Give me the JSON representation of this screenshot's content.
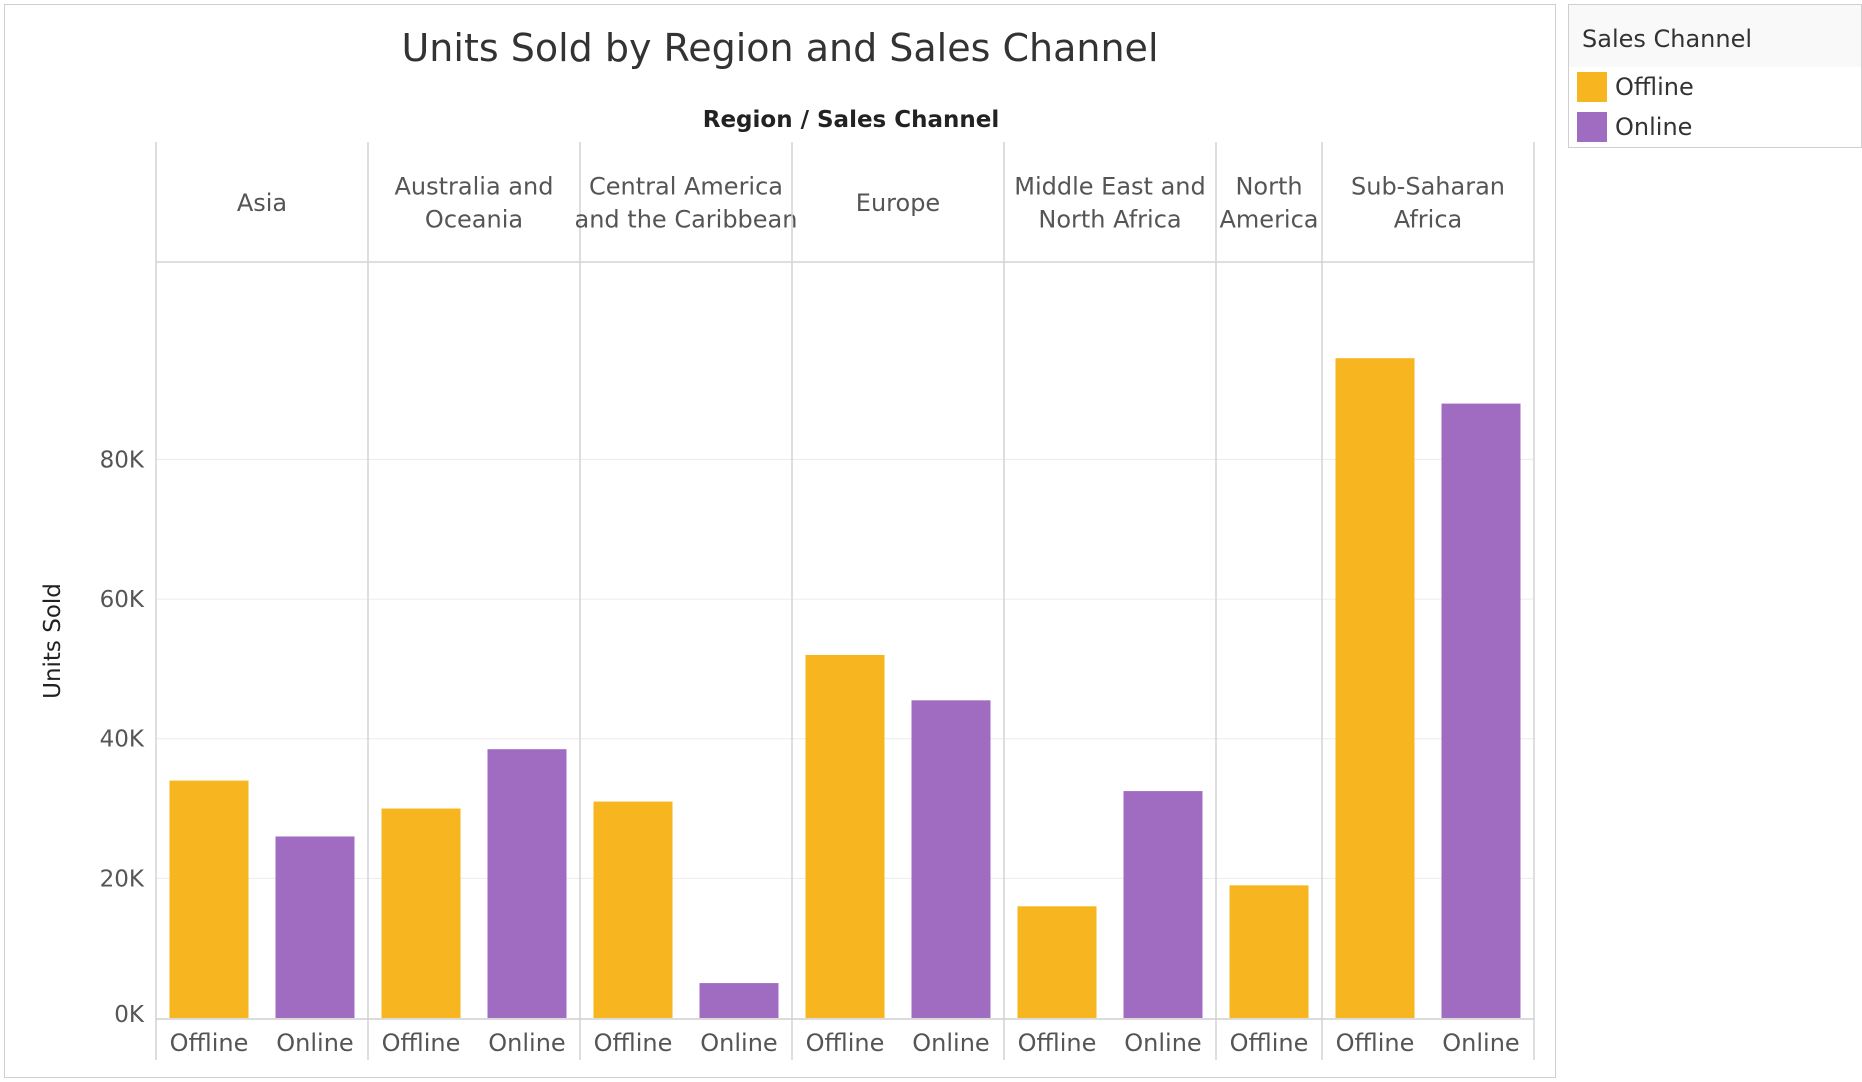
{
  "colors": {
    "Offline": "#F7B520",
    "Online": "#A06CC2"
  },
  "legend": {
    "title": "Sales Channel",
    "items": [
      {
        "label": "Offline",
        "color": "#F7B520"
      },
      {
        "label": "Online",
        "color": "#A06CC2"
      }
    ]
  },
  "chart_data": {
    "type": "bar",
    "title": "Units Sold by Region and Sales Channel",
    "header_label": "Region / Sales Channel",
    "xlabel": "",
    "ylabel": "Units Sold",
    "ylim": [
      0,
      100000
    ],
    "yticks": [
      0,
      20000,
      40000,
      60000,
      80000
    ],
    "ytick_labels": [
      "0K",
      "20K",
      "40K",
      "60K",
      "80K"
    ],
    "grid": true,
    "legend_position": "top-right",
    "groups": [
      {
        "region": [
          "Asia"
        ],
        "bars": [
          {
            "channel": "Offline",
            "value": 34000
          },
          {
            "channel": "Online",
            "value": 26000
          }
        ]
      },
      {
        "region": [
          "Australia and",
          "Oceania"
        ],
        "bars": [
          {
            "channel": "Offline",
            "value": 30000
          },
          {
            "channel": "Online",
            "value": 38500
          }
        ]
      },
      {
        "region": [
          "Central America",
          "and the Caribbean"
        ],
        "bars": [
          {
            "channel": "Offline",
            "value": 31000
          },
          {
            "channel": "Online",
            "value": 5000
          }
        ]
      },
      {
        "region": [
          "Europe"
        ],
        "bars": [
          {
            "channel": "Offline",
            "value": 52000
          },
          {
            "channel": "Online",
            "value": 45500
          }
        ]
      },
      {
        "region": [
          "Middle East and",
          "North Africa"
        ],
        "bars": [
          {
            "channel": "Offline",
            "value": 16000
          },
          {
            "channel": "Online",
            "value": 32500
          }
        ]
      },
      {
        "region": [
          "North",
          "America"
        ],
        "bars": [
          {
            "channel": "Offline",
            "value": 19000
          }
        ]
      },
      {
        "region": [
          "Sub-Saharan",
          "Africa"
        ],
        "bars": [
          {
            "channel": "Offline",
            "value": 94500
          },
          {
            "channel": "Online",
            "value": 88000
          }
        ]
      }
    ]
  }
}
